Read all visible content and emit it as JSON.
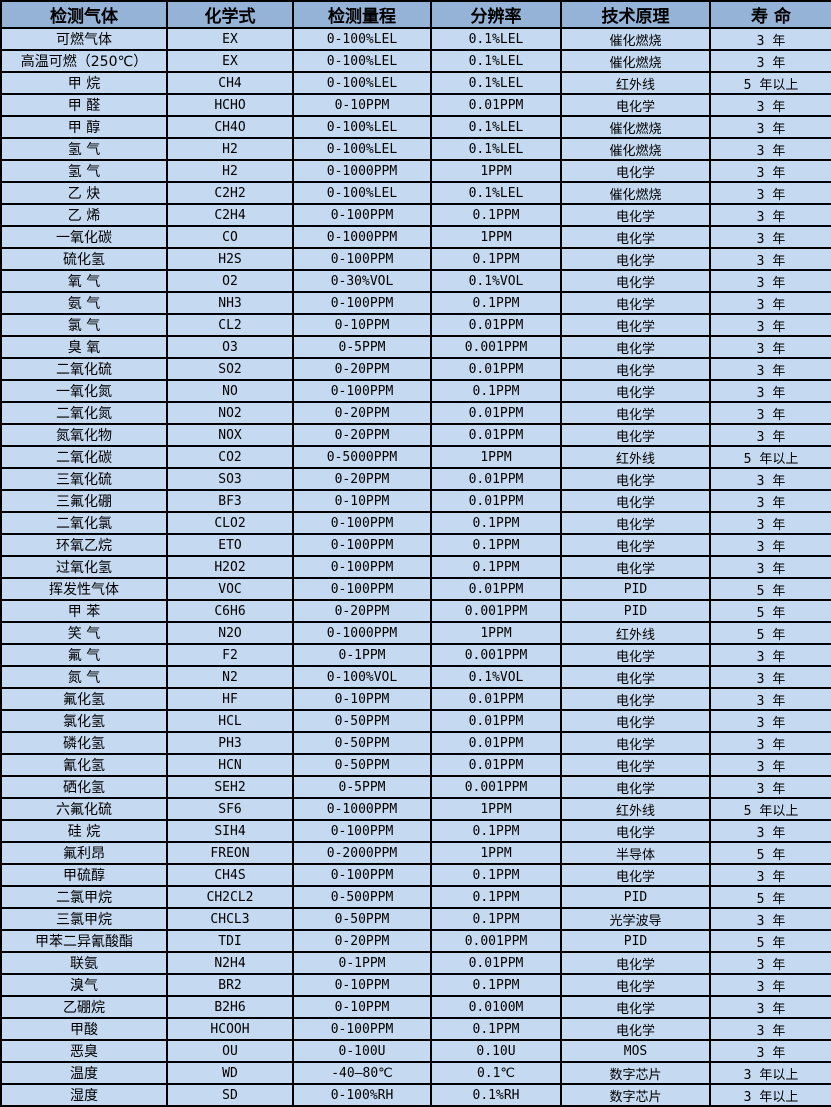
{
  "colors": {
    "header_bg": "#95B3D7",
    "row_bg": "#C5D9F1",
    "border": "#000000",
    "text": "#000000"
  },
  "table": {
    "headers": [
      "检测气体",
      "化学式",
      "检测量程",
      "分辨率",
      "技术原理",
      "寿 命"
    ],
    "rows": [
      [
        "可燃气体",
        "EX",
        "0-100%LEL",
        "0.1%LEL",
        "催化燃烧",
        "3 年"
      ],
      [
        "高温可燃（250℃）",
        "EX",
        "0-100%LEL",
        "0.1%LEL",
        "催化燃烧",
        "3 年"
      ],
      [
        "甲 烷",
        "CH4",
        "0-100%LEL",
        "0.1%LEL",
        "红外线",
        "5 年以上"
      ],
      [
        "甲 醛",
        "HCHO",
        "0-10PPM",
        "0.01PPM",
        "电化学",
        "3 年"
      ],
      [
        "甲 醇",
        "CH4O",
        "0-100%LEL",
        "0.1%LEL",
        "催化燃烧",
        "3 年"
      ],
      [
        "氢 气",
        "H2",
        "0-100%LEL",
        "0.1%LEL",
        "催化燃烧",
        "3 年"
      ],
      [
        "氢 气",
        "H2",
        "0-1000PPM",
        "1PPM",
        "电化学",
        "3 年"
      ],
      [
        "乙 炔",
        "C2H2",
        "0-100%LEL",
        "0.1%LEL",
        "催化燃烧",
        "3 年"
      ],
      [
        "乙 烯",
        "C2H4",
        "0-100PPM",
        "0.1PPM",
        "电化学",
        "3 年"
      ],
      [
        "一氧化碳",
        "CO",
        "0-1000PPM",
        "1PPM",
        "电化学",
        "3 年"
      ],
      [
        "硫化氢",
        "H2S",
        "0-100PPM",
        "0.1PPM",
        "电化学",
        "3 年"
      ],
      [
        "氧 气",
        "O2",
        "0-30%VOL",
        "0.1%VOL",
        "电化学",
        "3 年"
      ],
      [
        "氨 气",
        "NH3",
        "0-100PPM",
        "0.1PPM",
        "电化学",
        "3 年"
      ],
      [
        "氯 气",
        "CL2",
        "0-10PPM",
        "0.01PPM",
        "电化学",
        "3 年"
      ],
      [
        "臭 氧",
        "O3",
        "0-5PPM",
        "0.001PPM",
        "电化学",
        "3 年"
      ],
      [
        "二氧化硫",
        "SO2",
        "0-20PPM",
        "0.01PPM",
        "电化学",
        "3 年"
      ],
      [
        "一氧化氮",
        "NO",
        "0-100PPM",
        "0.1PPM",
        "电化学",
        "3 年"
      ],
      [
        "二氧化氮",
        "NO2",
        "0-20PPM",
        "0.01PPM",
        "电化学",
        "3 年"
      ],
      [
        "氮氧化物",
        "NOX",
        "0-20PPM",
        "0.01PPM",
        "电化学",
        "3 年"
      ],
      [
        "二氧化碳",
        "CO2",
        "0-5000PPM",
        "1PPM",
        "红外线",
        "5 年以上"
      ],
      [
        "三氧化硫",
        "SO3",
        "0-20PPM",
        "0.01PPM",
        "电化学",
        "3 年"
      ],
      [
        "三氟化硼",
        "BF3",
        "0-10PPM",
        "0.01PPM",
        "电化学",
        "3 年"
      ],
      [
        "二氧化氯",
        "CLO2",
        "0-100PPM",
        "0.1PPM",
        "电化学",
        "3 年"
      ],
      [
        "环氧乙烷",
        "ETO",
        "0-100PPM",
        "0.1PPM",
        "电化学",
        "3 年"
      ],
      [
        "过氧化氢",
        "H2O2",
        "0-100PPM",
        "0.1PPM",
        "电化学",
        "3 年"
      ],
      [
        "挥发性气体",
        "VOC",
        "0-100PPM",
        "0.01PPM",
        "PID",
        "5 年"
      ],
      [
        "甲 苯",
        "C6H6",
        "0-20PPM",
        "0.001PPM",
        "PID",
        "5 年"
      ],
      [
        "笑 气",
        "N2O",
        "0-1000PPM",
        "1PPM",
        "红外线",
        "5 年"
      ],
      [
        "氟 气",
        "F2",
        "0-1PPM",
        "0.001PPM",
        "电化学",
        "3 年"
      ],
      [
        "氮 气",
        "N2",
        "0-100%VOL",
        "0.1%VOL",
        "电化学",
        "3 年"
      ],
      [
        "氟化氢",
        "HF",
        "0-10PPM",
        "0.01PPM",
        "电化学",
        "3 年"
      ],
      [
        "氯化氢",
        "HCL",
        "0-50PPM",
        "0.01PPM",
        "电化学",
        "3 年"
      ],
      [
        "磷化氢",
        "PH3",
        "0-50PPM",
        "0.01PPM",
        "电化学",
        "3 年"
      ],
      [
        "氰化氢",
        "HCN",
        "0-50PPM",
        "0.01PPM",
        "电化学",
        "3 年"
      ],
      [
        "硒化氢",
        "SEH2",
        "0-5PPM",
        "0.001PPM",
        "电化学",
        "3 年"
      ],
      [
        "六氟化硫",
        "SF6",
        "0-1000PPM",
        "1PPM",
        "红外线",
        "5 年以上"
      ],
      [
        "硅 烷",
        "SIH4",
        "0-100PPM",
        "0.1PPM",
        "电化学",
        "3 年"
      ],
      [
        "氟利昂",
        "FREON",
        "0-2000PPM",
        "1PPM",
        "半导体",
        "5 年"
      ],
      [
        "甲硫醇",
        "CH4S",
        "0-100PPM",
        "0.1PPM",
        "电化学",
        "3 年"
      ],
      [
        "二氯甲烷",
        "CH2CL2",
        "0-500PPM",
        "0.1PPM",
        "PID",
        "5 年"
      ],
      [
        "三氯甲烷",
        "CHCL3",
        "0-50PPM",
        "0.1PPM",
        "光学波导",
        "3 年"
      ],
      [
        "甲苯二异氰酸酯",
        "TDI",
        "0-20PPM",
        "0.001PPM",
        "PID",
        "5 年"
      ],
      [
        "联氨",
        "N2H4",
        "0-1PPM",
        "0.01PPM",
        "电化学",
        "3 年"
      ],
      [
        "溴气",
        "BR2",
        "0-10PPM",
        "0.1PPM",
        "电化学",
        "3 年"
      ],
      [
        "乙硼烷",
        "B2H6",
        "0-10PPM",
        "0.0100M",
        "电化学",
        "3 年"
      ],
      [
        "甲酸",
        "HCOOH",
        "0-100PPM",
        "0.1PPM",
        "电化学",
        "3 年"
      ],
      [
        "恶臭",
        "OU",
        "0-100U",
        "0.10U",
        "MOS",
        "3 年"
      ],
      [
        "温度",
        "WD",
        "-40—80℃",
        "0.1℃",
        "数字芯片",
        "3 年以上"
      ],
      [
        "湿度",
        "SD",
        "0-100%RH",
        "0.1%RH",
        "数字芯片",
        "3 年以上"
      ]
    ]
  }
}
